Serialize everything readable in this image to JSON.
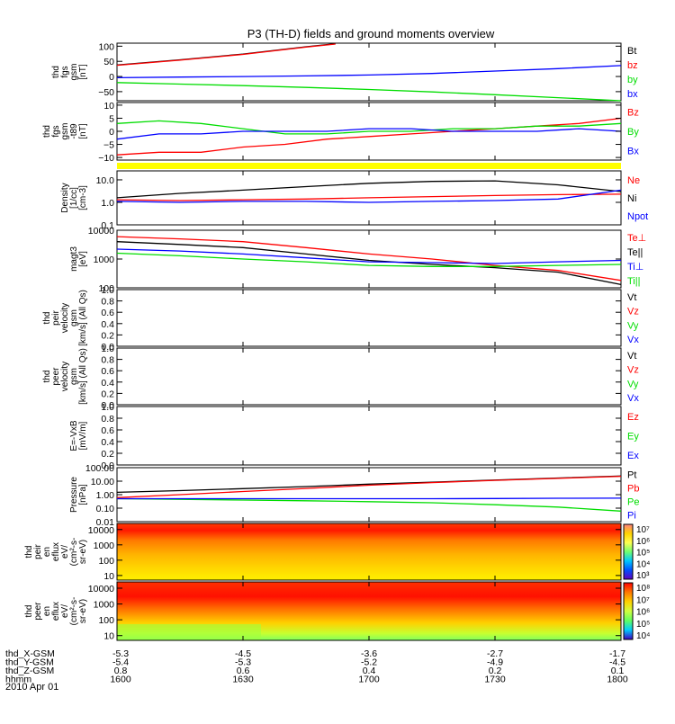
{
  "title": "P3 (TH-D) fields and ground moments overview",
  "date_label": "2010 Apr 01",
  "colors": {
    "black": "#000000",
    "red": "#ff0000",
    "green": "#00dd00",
    "blue": "#0000ff",
    "yellow": "#ffff00"
  },
  "chart_data": {
    "type": "line",
    "x_axis": {
      "unit": "hhmm",
      "ticks": [
        "1600",
        "1630",
        "1700",
        "1730",
        "1800"
      ],
      "rows": [
        {
          "label": "thd_X-GSM",
          "values": [
            "-5.3",
            "-4.5",
            "-3.6",
            "-2.7",
            "-1.7"
          ]
        },
        {
          "label": "thd_Y-GSM",
          "values": [
            "-5.4",
            "-5.3",
            "-5.2",
            "-4.9",
            "-4.5"
          ]
        },
        {
          "label": "thd_Z-GSM",
          "values": [
            "0.8",
            "0.6",
            "0.4",
            "0.2",
            "0.1"
          ]
        },
        {
          "label": "hhmm",
          "values": [
            "1600",
            "1630",
            "1700",
            "1730",
            "1800"
          ]
        }
      ]
    },
    "panels": [
      {
        "id": "fgs",
        "ylabel": [
          "thd",
          "fgs",
          "gsm",
          "[nT]"
        ],
        "scale": "linear",
        "ylim": [
          -80,
          110
        ],
        "yticks": [
          "100",
          "50",
          "0",
          "−50"
        ],
        "ytick_values": [
          100,
          50,
          0,
          -50
        ],
        "legend": [
          "Bt",
          "bz",
          "by",
          "bx"
        ],
        "legend_colors": [
          "#000000",
          "#ff0000",
          "#00dd00",
          "#0000ff"
        ],
        "series": [
          {
            "name": "Bt",
            "color": "#000000",
            "x": [
              1600,
              1615,
              1630,
              1645,
              1652
            ],
            "y": [
              38,
              55,
              74,
              98,
              108
            ]
          },
          {
            "name": "bz",
            "color": "#ff0000",
            "x": [
              1600,
              1615,
              1630,
              1645,
              1652
            ],
            "y": [
              37,
              54,
              73,
              97,
              107
            ]
          },
          {
            "name": "by",
            "color": "#00dd00",
            "x": [
              1600,
              1615,
              1630,
              1645,
              1700,
              1715,
              1730,
              1745,
              1800
            ],
            "y": [
              -20,
              -25,
              -30,
              -36,
              -43,
              -51,
              -60,
              -70,
              -80
            ]
          },
          {
            "name": "bx",
            "color": "#0000ff",
            "x": [
              1600,
              1615,
              1630,
              1645,
              1700,
              1715,
              1730,
              1745,
              1800
            ],
            "y": [
              -4,
              -2,
              0,
              2,
              5,
              10,
              18,
              26,
              36
            ]
          }
        ]
      },
      {
        "id": "fgs_dsg",
        "ylabel": [
          "thd",
          "fgs",
          "gsm",
          "-t89",
          "[nT]"
        ],
        "scale": "linear",
        "ylim": [
          -11,
          11
        ],
        "yticks": [
          "10",
          "5",
          "0",
          "−5",
          "−10"
        ],
        "ytick_values": [
          10,
          5,
          0,
          -5,
          -10
        ],
        "legend": [
          "Bz",
          "By",
          "Bx"
        ],
        "legend_colors": [
          "#ff0000",
          "#00dd00",
          "#0000ff"
        ],
        "series": [
          {
            "name": "Bz",
            "color": "#ff0000",
            "x": [
              1600,
              1610,
              1620,
              1630,
              1640,
              1650,
              1700,
              1710,
              1720,
              1730,
              1740,
              1750,
              1800
            ],
            "y": [
              -9,
              -8,
              -8,
              -6,
              -5,
              -3,
              -2,
              -1,
              0,
              1,
              2,
              3,
              5
            ]
          },
          {
            "name": "By",
            "color": "#00dd00",
            "x": [
              1600,
              1610,
              1620,
              1630,
              1640,
              1650,
              1700,
              1710,
              1720,
              1730,
              1740,
              1750,
              1800
            ],
            "y": [
              3,
              4,
              3,
              1,
              -1,
              -1,
              0,
              0,
              1,
              1,
              2,
              2,
              3
            ]
          },
          {
            "name": "Bx",
            "color": "#0000ff",
            "x": [
              1600,
              1610,
              1620,
              1630,
              1640,
              1650,
              1700,
              1710,
              1720,
              1730,
              1740,
              1750,
              1800
            ],
            "y": [
              -3,
              -1,
              -1,
              0,
              0,
              0,
              1,
              1,
              0,
              0,
              0,
              1,
              0
            ]
          }
        ]
      },
      {
        "id": "density",
        "ylabel": [
          "Density",
          "[1/cc]",
          "[cm-3]"
        ],
        "scale": "log",
        "ylim": [
          0.1,
          25
        ],
        "yticks": [
          "10.0",
          "1.0",
          "0.1"
        ],
        "ytick_values": [
          10,
          1,
          0.1
        ],
        "legend": [
          "Ne",
          "Ni",
          "Npot"
        ],
        "legend_colors": [
          "#ff0000",
          "#000000",
          "#0000ff"
        ],
        "series": [
          {
            "name": "Ni",
            "color": "#000000",
            "x": [
              1600,
              1615,
              1630,
              1645,
              1700,
              1715,
              1730,
              1745,
              1800
            ],
            "y": [
              1.6,
              2.5,
              3.5,
              5.0,
              7.0,
              8.5,
              9.0,
              6.0,
              3.0
            ]
          },
          {
            "name": "Ne",
            "color": "#ff0000",
            "x": [
              1600,
              1615,
              1630,
              1645,
              1700,
              1715,
              1730,
              1745,
              1800
            ],
            "y": [
              1.3,
              1.2,
              1.3,
              1.4,
              1.6,
              1.8,
              2.0,
              2.2,
              2.3
            ]
          },
          {
            "name": "Npot",
            "color": "#0000ff",
            "x": [
              1600,
              1615,
              1630,
              1645,
              1700,
              1715,
              1730,
              1745,
              1800
            ],
            "y": [
              1.1,
              1.0,
              1.1,
              1.1,
              1.0,
              1.1,
              1.2,
              1.4,
              3.5
            ]
          }
        ]
      },
      {
        "id": "temp",
        "ylabel": [
          "magt3",
          "[eV]"
        ],
        "scale": "log",
        "ylim": [
          100,
          10000
        ],
        "yticks": [
          "10000",
          "1000",
          "100"
        ],
        "ytick_values": [
          10000,
          1000,
          100
        ],
        "legend": [
          "Te⊥",
          "Te||",
          "Ti⊥",
          "Ti||"
        ],
        "legend_colors": [
          "#ff0000",
          "#000000",
          "#0000ff",
          "#00dd00"
        ],
        "series": [
          {
            "name": "Te⊥",
            "color": "#ff0000",
            "x": [
              1600,
              1615,
              1630,
              1645,
              1700,
              1715,
              1730,
              1745,
              1800
            ],
            "y": [
              6000,
              5000,
              4000,
              2500,
              1500,
              1000,
              600,
              400,
              180
            ]
          },
          {
            "name": "Te||",
            "color": "#000000",
            "x": [
              1600,
              1615,
              1630,
              1645,
              1700,
              1715,
              1730,
              1745,
              1800
            ],
            "y": [
              4000,
              3200,
              2500,
              1500,
              900,
              650,
              500,
              350,
              130
            ]
          },
          {
            "name": "Ti⊥",
            "color": "#0000ff",
            "x": [
              1600,
              1615,
              1630,
              1645,
              1700,
              1715,
              1730,
              1745,
              1800
            ],
            "y": [
              2200,
              1900,
              1500,
              1100,
              800,
              750,
              700,
              800,
              900
            ]
          },
          {
            "name": "Ti||",
            "color": "#00dd00",
            "x": [
              1600,
              1615,
              1630,
              1645,
              1700,
              1715,
              1730,
              1745,
              1800
            ],
            "y": [
              1600,
              1300,
              1000,
              800,
              600,
              550,
              550,
              600,
              650
            ]
          }
        ]
      },
      {
        "id": "peir_vel",
        "ylabel": [
          "thd",
          "peir",
          "velocity",
          "gsm",
          "[km/s] (All Qs)"
        ],
        "scale": "linear",
        "ylim": [
          0,
          1
        ],
        "yticks": [
          "1.0",
          "0.8",
          "0.6",
          "0.4",
          "0.2",
          "0.0"
        ],
        "ytick_values": [
          1,
          0.8,
          0.6,
          0.4,
          0.2,
          0
        ],
        "legend": [
          "Vt",
          "Vz",
          "Vy",
          "Vx"
        ],
        "legend_colors": [
          "#000000",
          "#ff0000",
          "#00dd00",
          "#0000ff"
        ],
        "series": []
      },
      {
        "id": "peer_vel",
        "ylabel": [
          "thd",
          "peer",
          "velocity",
          "gsm",
          "[km/s] (All Qs)"
        ],
        "scale": "linear",
        "ylim": [
          0,
          1
        ],
        "yticks": [
          "1.0",
          "0.8",
          "0.6",
          "0.4",
          "0.2",
          "0.0"
        ],
        "ytick_values": [
          1,
          0.8,
          0.6,
          0.4,
          0.2,
          0
        ],
        "legend": [
          "Vt",
          "Vz",
          "Vy",
          "Vx"
        ],
        "legend_colors": [
          "#000000",
          "#ff0000",
          "#00dd00",
          "#0000ff"
        ],
        "series": []
      },
      {
        "id": "efield",
        "ylabel": [
          "E=-VxB",
          "[mV/m]"
        ],
        "scale": "linear",
        "ylim": [
          0,
          1
        ],
        "yticks": [
          "1.0",
          "0.8",
          "0.6",
          "0.4",
          "0.2",
          "0.0"
        ],
        "ytick_values": [
          1,
          0.8,
          0.6,
          0.4,
          0.2,
          0
        ],
        "legend": [
          "Ez",
          "Ey",
          "Ex"
        ],
        "legend_colors": [
          "#ff0000",
          "#00dd00",
          "#0000ff"
        ],
        "series": []
      },
      {
        "id": "pressure",
        "ylabel": [
          "Pressure",
          "[nPa]"
        ],
        "scale": "log",
        "ylim": [
          0.01,
          100
        ],
        "yticks": [
          "100.00",
          "10.00",
          "1.00",
          "0.10",
          "0.01"
        ],
        "ytick_values": [
          100,
          10,
          1,
          0.1,
          0.01
        ],
        "legend": [
          "Pt",
          "Pb",
          "Pe",
          "Pi"
        ],
        "legend_colors": [
          "#000000",
          "#ff0000",
          "#00dd00",
          "#0000ff"
        ],
        "series": [
          {
            "name": "Pt",
            "color": "#000000",
            "x": [
              1600,
              1615,
              1630,
              1645,
              1700,
              1715,
              1730,
              1745,
              1800
            ],
            "y": [
              1.5,
              2.0,
              2.8,
              4.0,
              6.0,
              8.5,
              12,
              17,
              24
            ]
          },
          {
            "name": "Pb",
            "color": "#ff0000",
            "x": [
              1600,
              1615,
              1630,
              1645,
              1700,
              1715,
              1730,
              1745,
              1800
            ],
            "y": [
              0.6,
              1.0,
              1.7,
              2.9,
              5.0,
              7.8,
              11.5,
              16,
              23
            ]
          },
          {
            "name": "Pe",
            "color": "#00dd00",
            "x": [
              1600,
              1615,
              1630,
              1645,
              1700,
              1715,
              1730,
              1745,
              1800
            ],
            "y": [
              0.5,
              0.45,
              0.4,
              0.35,
              0.3,
              0.25,
              0.18,
              0.12,
              0.06
            ]
          },
          {
            "name": "Pi",
            "color": "#0000ff",
            "x": [
              1600,
              1615,
              1630,
              1645,
              1700,
              1715,
              1730,
              1745,
              1800
            ],
            "y": [
              0.5,
              0.5,
              0.5,
              0.5,
              0.5,
              0.5,
              0.52,
              0.54,
              0.55
            ]
          }
        ]
      }
    ],
    "spectrograms": [
      {
        "id": "peir_spec",
        "ylabel": [
          "thd",
          "peir",
          "en",
          "eflux",
          "eV/",
          "(cm²-s-",
          "sr-eV)"
        ],
        "scale": "log",
        "ylim": [
          5,
          25000
        ],
        "yticks": [
          "10000",
          "1000",
          "100",
          "10"
        ],
        "ytick_values": [
          10000,
          1000,
          100,
          10
        ],
        "colorbar_ticks": [
          "10⁷",
          "10⁶",
          "10⁵",
          "10⁴",
          "10³"
        ],
        "colorbar_range": [
          3,
          7
        ]
      },
      {
        "id": "peer_spec",
        "ylabel": [
          "thd",
          "peer",
          "en",
          "eflux",
          "eV/",
          "(cm²-s-",
          "sr-eV)"
        ],
        "scale": "log",
        "ylim": [
          5,
          25000
        ],
        "yticks": [
          "10000",
          "1000",
          "100",
          "10"
        ],
        "ytick_values": [
          10000,
          1000,
          100,
          10
        ],
        "colorbar_ticks": [
          "10⁸",
          "10⁷",
          "10⁶",
          "10⁵",
          "10⁴"
        ],
        "colorbar_range": [
          4,
          8
        ]
      }
    ]
  }
}
